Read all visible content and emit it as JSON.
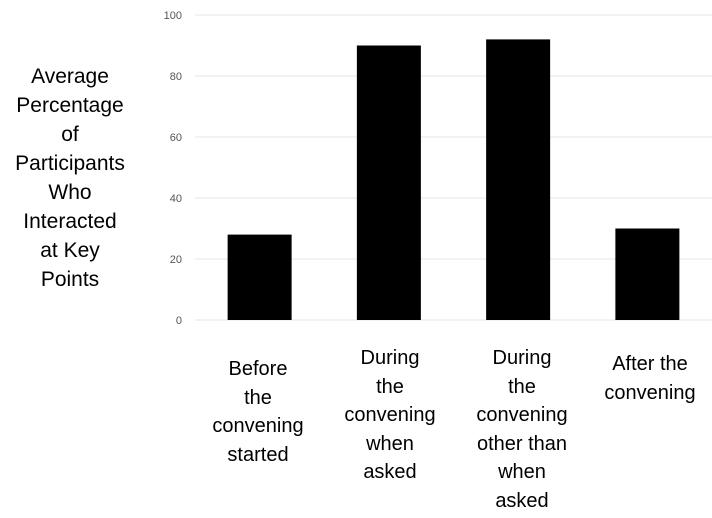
{
  "chart_data": {
    "type": "bar",
    "ylabel_lines": [
      "Average",
      "Percentage",
      "of",
      "Participants",
      "Who",
      "Interacted",
      "at Key",
      "Points"
    ],
    "categories": [
      [
        "Before",
        "the",
        "convening",
        "started"
      ],
      [
        "During",
        "the",
        "convening",
        "when",
        "asked"
      ],
      [
        "During",
        "the",
        "convening",
        "other than",
        "when",
        "asked"
      ],
      [
        "After the",
        "convening"
      ]
    ],
    "values": [
      28,
      90,
      92,
      30
    ],
    "ylim": [
      0,
      100
    ],
    "yticks": [
      0,
      20,
      40,
      60,
      80,
      100
    ],
    "grid": true,
    "colors": {
      "bar": "#000000",
      "grid": "#e6e6e6",
      "tick": "#555555"
    }
  }
}
